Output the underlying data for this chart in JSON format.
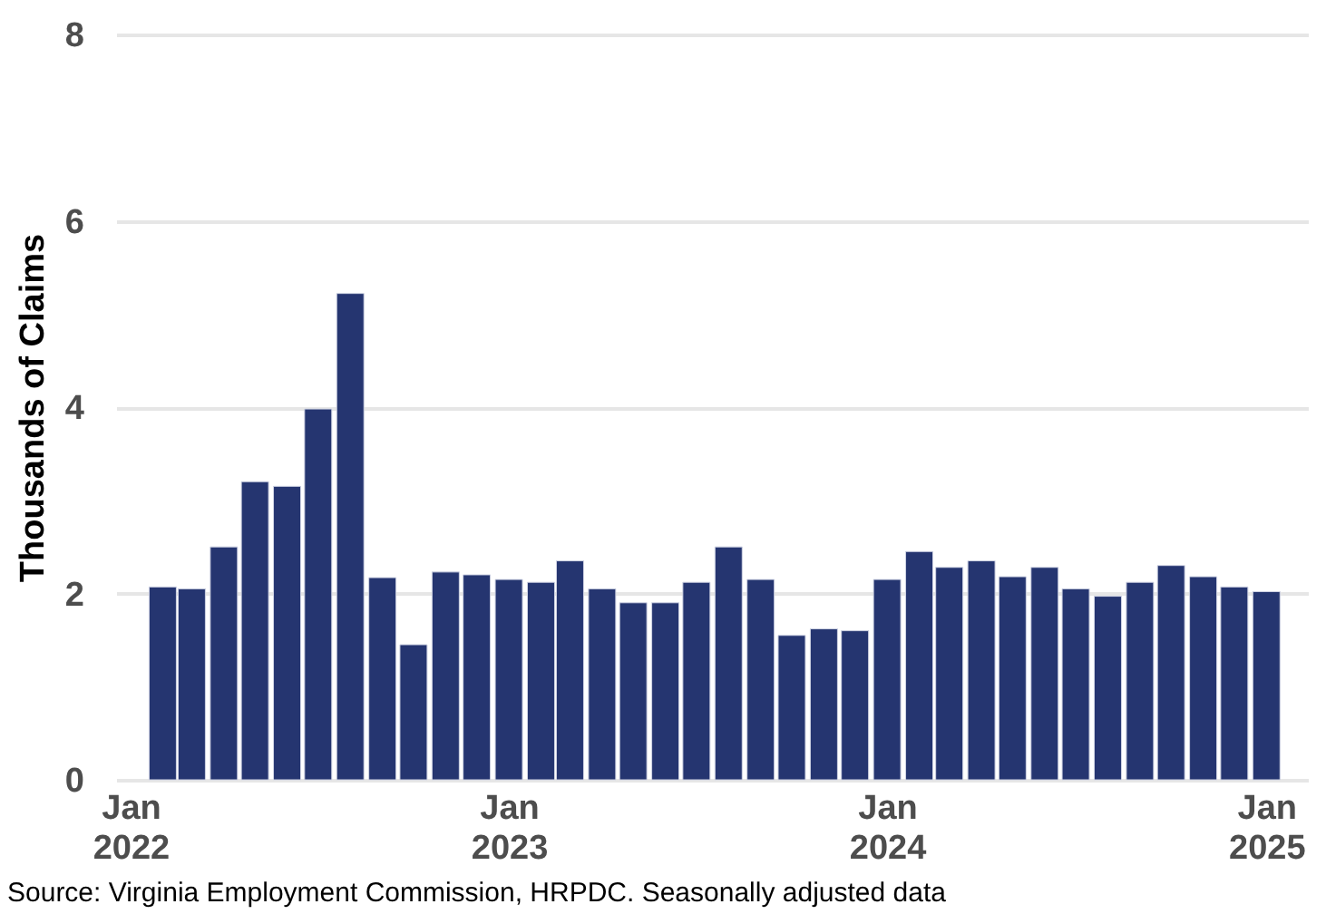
{
  "chart_data": {
    "type": "bar",
    "ylabel": "Thousands of Claims",
    "color": "#253570",
    "x": [
      "2022-02-01",
      "2022-03-01",
      "2022-04-01",
      "2022-05-01",
      "2022-06-01",
      "2022-07-01",
      "2022-08-01",
      "2022-09-01",
      "2022-10-01",
      "2022-11-01",
      "2022-12-01",
      "2023-01-01",
      "2023-02-01",
      "2023-03-01",
      "2023-04-01",
      "2023-05-01",
      "2023-06-01",
      "2023-07-01",
      "2023-08-01",
      "2023-09-01",
      "2023-10-01",
      "2023-11-01",
      "2023-12-01",
      "2024-01-01",
      "2024-02-01",
      "2024-03-01",
      "2024-04-01",
      "2024-05-01",
      "2024-06-01",
      "2024-07-01",
      "2024-08-01",
      "2024-09-01",
      "2024-10-01",
      "2024-11-01",
      "2024-12-01",
      "2025-01-01"
    ],
    "values": [
      2.07,
      2.05,
      2.5,
      3.2,
      3.15,
      3.98,
      5.22,
      2.17,
      1.45,
      2.23,
      2.2,
      2.15,
      2.12,
      2.35,
      2.05,
      1.9,
      1.9,
      2.12,
      2.5,
      2.15,
      1.55,
      1.62,
      1.6,
      2.15,
      2.45,
      2.28,
      2.35,
      2.18,
      2.28,
      2.05,
      1.97,
      2.12,
      2.3,
      2.18,
      2.07,
      2.02
    ],
    "xlim": [
      "2021-12-18",
      "2025-02-10"
    ],
    "xticks": [
      {
        "value": "2022-01-01",
        "label": "Jan 2022"
      },
      {
        "value": "2023-01-01",
        "label": "Jan 2023"
      },
      {
        "value": "2024-01-01",
        "label": "Jan 2024"
      },
      {
        "value": "2025-01-01",
        "label": "Jan 2025"
      }
    ],
    "ylim": [
      0,
      8
    ],
    "yticks": [
      0,
      2,
      4,
      6,
      8
    ],
    "grid": "y",
    "annotations": [
      "Source: Virginia Employment Commission, HRPDC. Seasonally adjusted data"
    ]
  }
}
